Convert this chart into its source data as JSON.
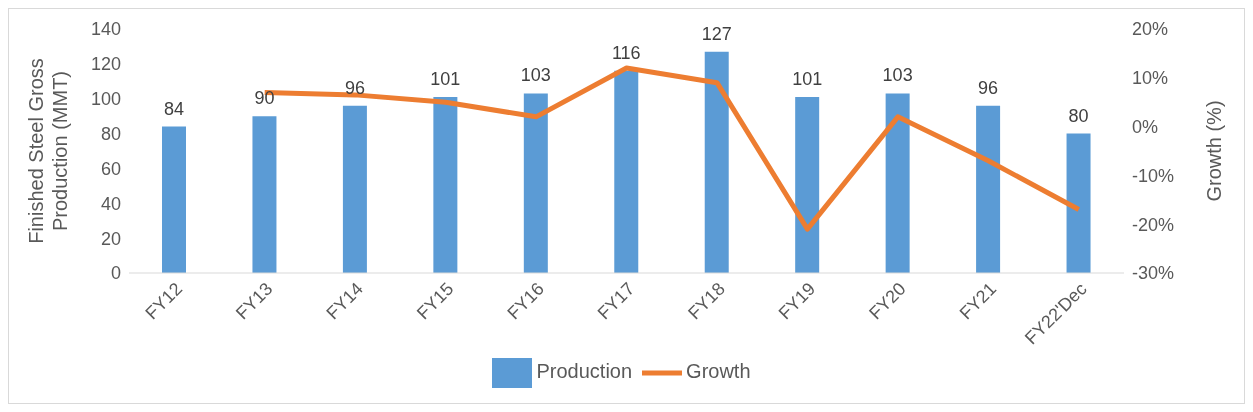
{
  "chart_data": {
    "type": "bar",
    "ylabel": "Finished Steel Gross Production (MMT)",
    "y2label": "Growth (%)",
    "categories": [
      "FY12",
      "FY13",
      "FY14",
      "FY15",
      "FY16",
      "FY17",
      "FY18",
      "FY19",
      "FY20",
      "FY21",
      "FY22'Dec"
    ],
    "series": [
      {
        "name": "Production",
        "color": "#5b9bd5",
        "values": [
          84,
          90,
          96,
          101,
          103,
          116,
          127,
          101,
          103,
          96,
          80
        ],
        "data_labels": true
      },
      {
        "name": "Growth",
        "type": "line",
        "axis": "y2",
        "color": "#ed7d31",
        "values": [
          null,
          7,
          6.5,
          5,
          2,
          12,
          9,
          -21,
          2,
          -7,
          -17
        ]
      }
    ],
    "ylim": [
      0,
      140
    ],
    "yticks": [
      0,
      20,
      40,
      60,
      80,
      100,
      120,
      140
    ],
    "y2lim": [
      -30,
      20
    ],
    "y2ticks": [
      {
        "value": -30,
        "label": "-30%"
      },
      {
        "value": -20,
        "label": "-20%"
      },
      {
        "value": -10,
        "label": "-10%"
      },
      {
        "value": 0,
        "label": "0%"
      },
      {
        "value": 10,
        "label": "10%"
      },
      {
        "value": 20,
        "label": "20%"
      }
    ],
    "legend": "bottom",
    "grid": false,
    "marker": "none"
  }
}
